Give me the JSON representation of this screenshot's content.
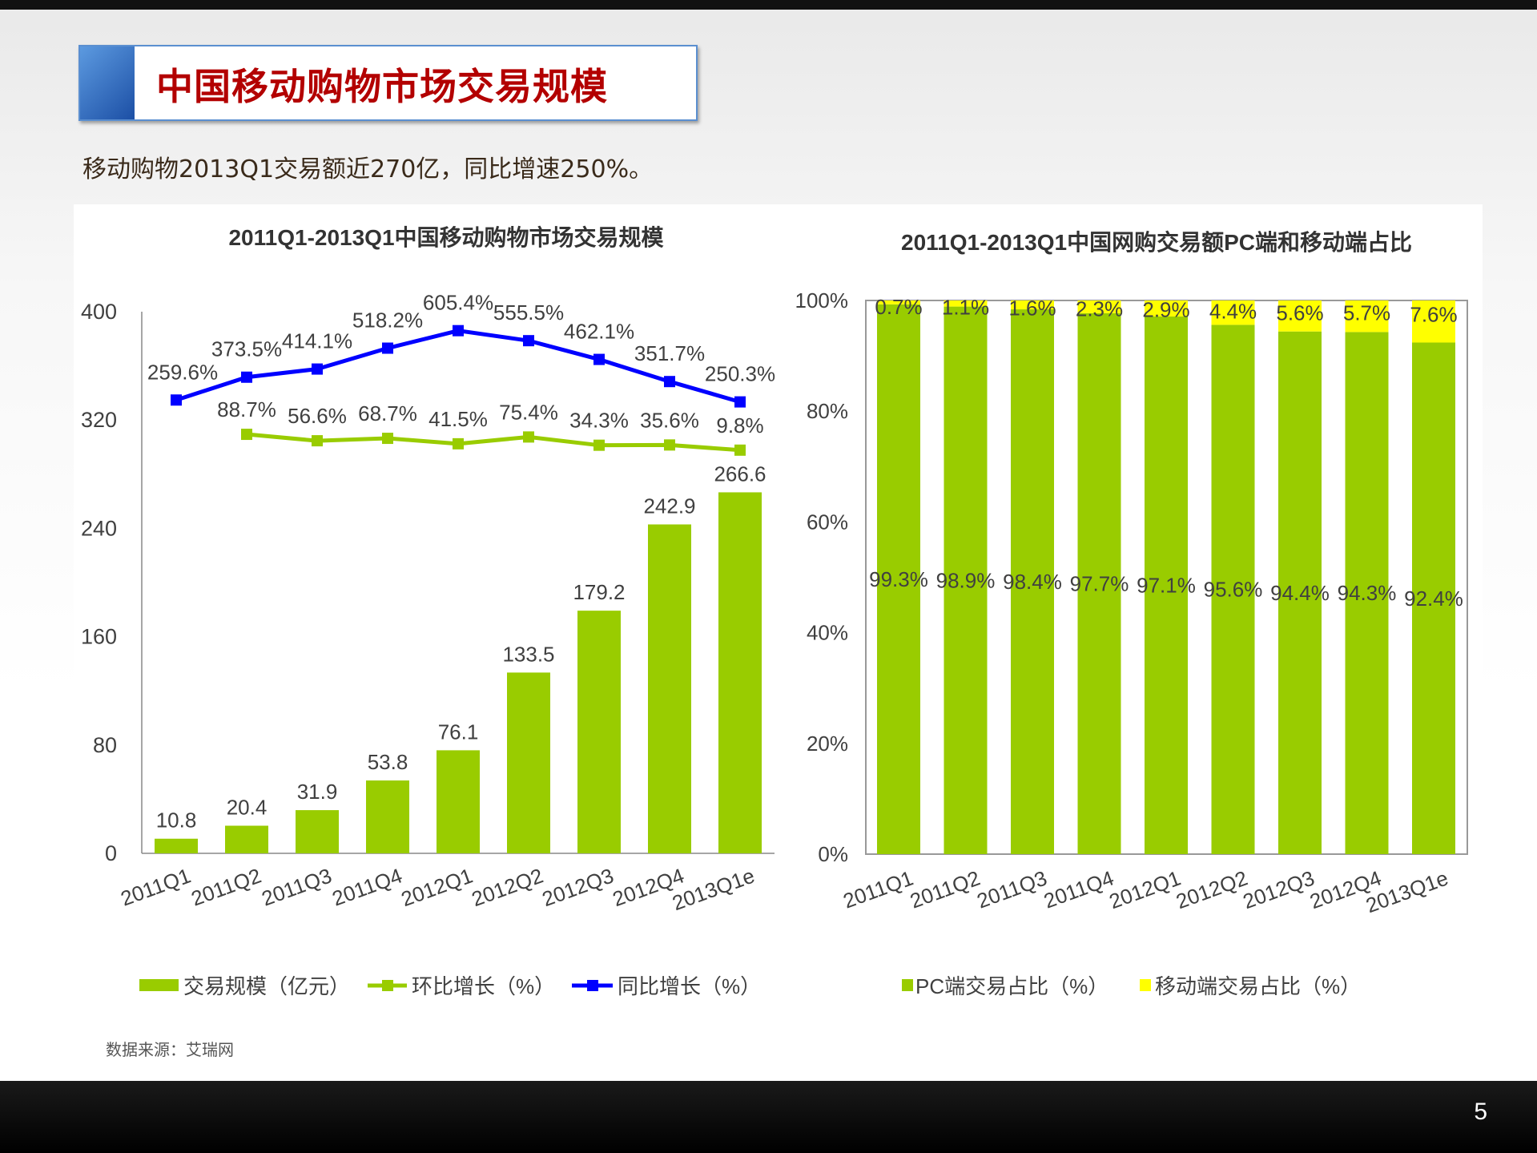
{
  "slide": {
    "title": "中国移动购物市场交易规模",
    "subtitle": "移动购物2013Q1交易额近270亿，同比增速250%。",
    "source": "数据来源：艾瑞网",
    "page_number": "5"
  },
  "colors": {
    "green": "#99cc00",
    "blue": "#0000ff",
    "yellow": "#ffff00",
    "title_red": "#b30000"
  },
  "chart_data": [
    {
      "type": "bar",
      "title": "2011Q1-2013Q1中国移动购物市场交易规模",
      "categories": [
        "2011Q1",
        "2011Q2",
        "2011Q3",
        "2011Q4",
        "2012Q1",
        "2012Q2",
        "2012Q3",
        "2012Q4",
        "2013Q1e"
      ],
      "ylim": [
        0,
        400
      ],
      "yticks": [
        "0",
        "80",
        "160",
        "240",
        "320",
        "400"
      ],
      "y2lim": [
        -2000,
        700
      ],
      "series": [
        {
          "name": "交易规模（亿元）",
          "type": "bar",
          "values": [
            10.8,
            20.4,
            31.9,
            53.8,
            76.1,
            133.5,
            179.2,
            242.9,
            266.6
          ],
          "labels": [
            "10.8",
            "20.4",
            "31.9",
            "53.8",
            "76.1",
            "133.5",
            "179.2",
            "242.9",
            "266.6"
          ]
        },
        {
          "name": "环比增长（%）",
          "type": "line",
          "axis": "y2",
          "values": [
            null,
            88.7,
            56.6,
            68.7,
            41.5,
            75.4,
            34.3,
            35.6,
            9.8
          ],
          "labels": [
            "",
            "88.7%",
            "56.6%",
            "68.7%",
            "41.5%",
            "75.4%",
            "34.3%",
            "35.6%",
            "9.8%"
          ]
        },
        {
          "name": "同比增长（%）",
          "type": "line",
          "axis": "y2",
          "values": [
            259.6,
            373.5,
            414.1,
            518.2,
            605.4,
            555.5,
            462.1,
            351.7,
            250.3
          ],
          "labels": [
            "259.6%",
            "373.5%",
            "414.1%",
            "518.2%",
            "605.4%",
            "555.5%",
            "462.1%",
            "351.7%",
            "250.3%"
          ]
        }
      ],
      "legend": "bottom",
      "grid": false
    },
    {
      "type": "bar",
      "stacked": true,
      "title": "2011Q1-2013Q1中国网购交易额PC端和移动端占比",
      "categories": [
        "2011Q1",
        "2011Q2",
        "2011Q3",
        "2011Q4",
        "2012Q1",
        "2012Q2",
        "2012Q3",
        "2012Q4",
        "2013Q1e"
      ],
      "ylim": [
        0,
        100
      ],
      "yticks": [
        "0%",
        "20%",
        "40%",
        "60%",
        "80%",
        "100%"
      ],
      "series": [
        {
          "name": "PC端交易占比（%）",
          "values": [
            99.3,
            98.9,
            98.4,
            97.7,
            97.1,
            95.6,
            94.4,
            94.3,
            92.4
          ],
          "labels": [
            "99.3%",
            "98.9%",
            "98.4%",
            "97.7%",
            "97.1%",
            "95.6%",
            "94.4%",
            "94.3%",
            "92.4%"
          ]
        },
        {
          "name": "移动端交易占比（%）",
          "values": [
            0.7,
            1.1,
            1.6,
            2.3,
            2.9,
            4.4,
            5.6,
            5.7,
            7.6
          ],
          "labels": [
            "0.7%",
            "1.1%",
            "1.6%",
            "2.3%",
            "2.9%",
            "4.4%",
            "5.6%",
            "5.7%",
            "7.6%"
          ]
        }
      ],
      "legend": "bottom",
      "grid": false
    }
  ]
}
